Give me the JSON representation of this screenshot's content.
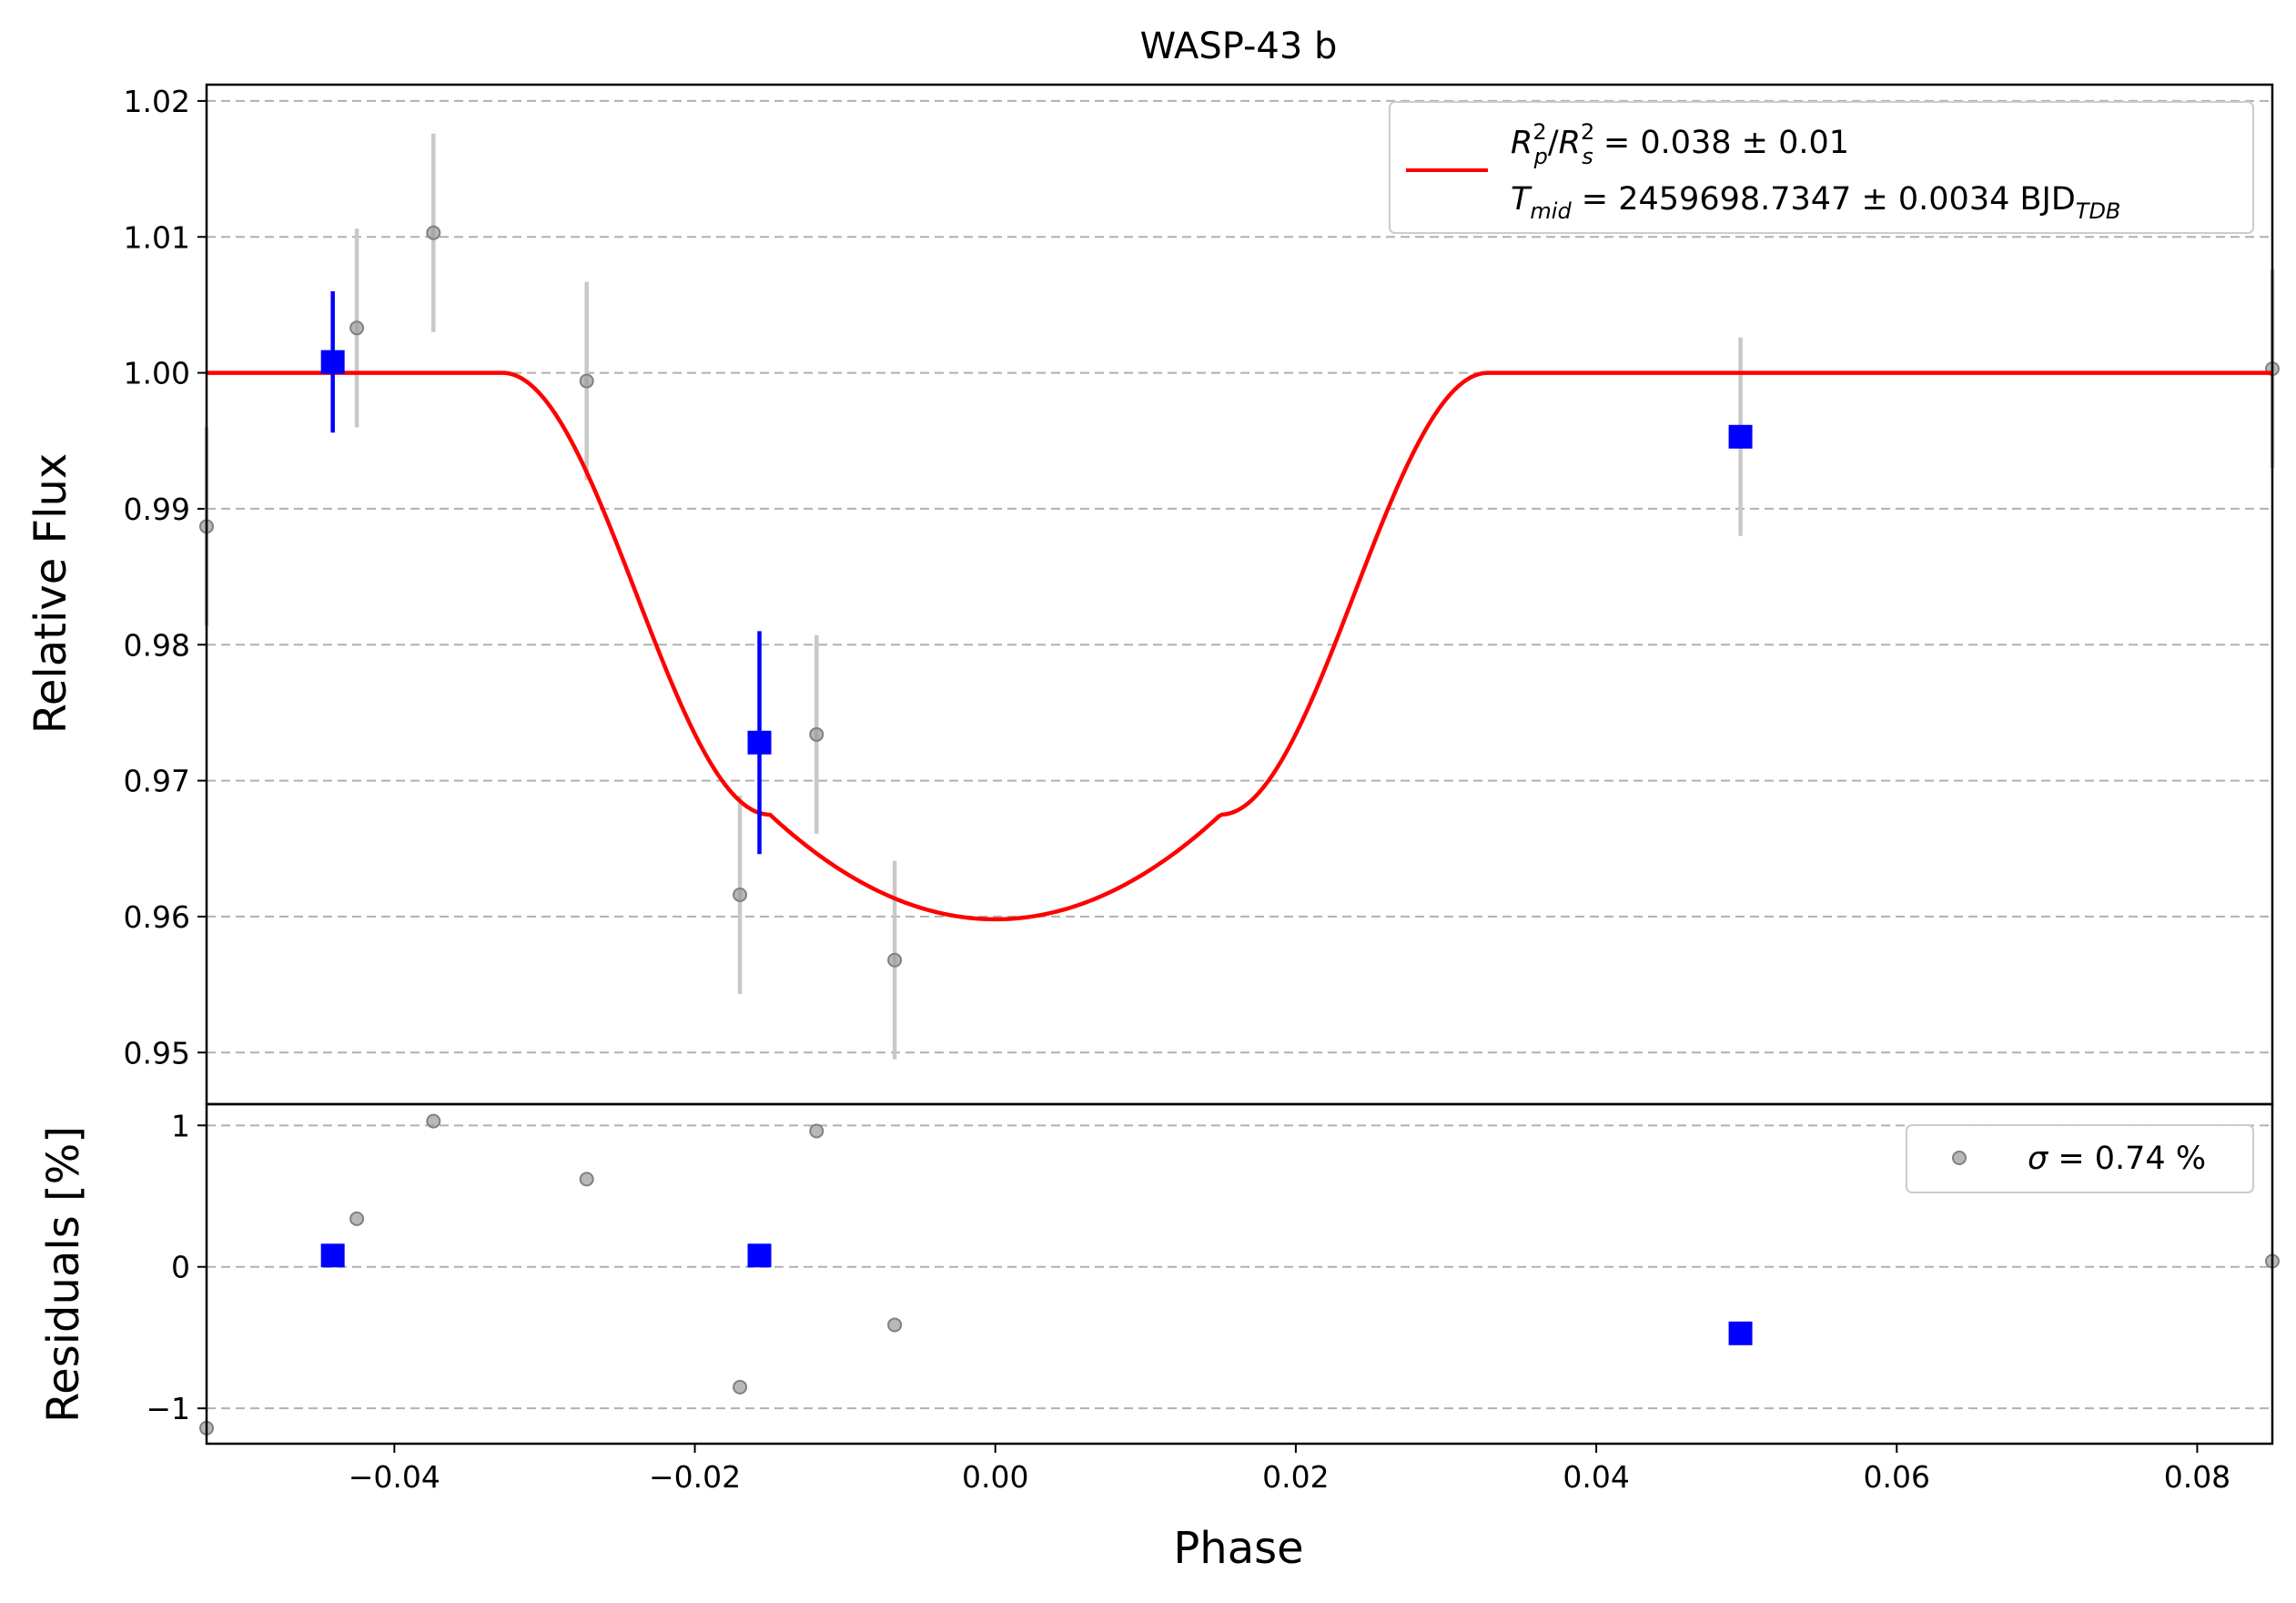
{
  "chart_data": [
    {
      "type": "scatter",
      "panel": "main",
      "title": "WASP-43 b",
      "xlabel": "",
      "ylabel": "Relative Flux",
      "xlim": [
        -0.0525,
        0.085
      ],
      "ylim": [
        0.9462,
        1.0212
      ],
      "yticks": [
        0.95,
        0.96,
        0.97,
        0.98,
        0.99,
        1.0,
        1.01,
        1.02
      ],
      "ytick_labels": [
        "0.95",
        "0.96",
        "0.97",
        "0.98",
        "0.99",
        "1.00",
        "1.01",
        "1.02"
      ],
      "grid": "horizontal dashed",
      "legend_position": "top-right",
      "series": [
        {
          "kind": "points_with_error",
          "color": "#808080",
          "points": [
            {
              "x": -0.0525,
              "y": 0.9887,
              "err": 0.0073
            },
            {
              "x": -0.0425,
              "y": 1.0033,
              "err": 0.0073
            },
            {
              "x": -0.0374,
              "y": 1.0103,
              "err": 0.0073
            },
            {
              "x": -0.0272,
              "y": 0.9994,
              "err": 0.0073
            },
            {
              "x": -0.017,
              "y": 0.9616,
              "err": 0.0073
            },
            {
              "x": -0.0119,
              "y": 0.9734,
              "err": 0.0073
            },
            {
              "x": -0.0067,
              "y": 0.9568,
              "err": 0.0073
            },
            {
              "x": 0.0496,
              "y": 0.9953,
              "err": 0.0073
            },
            {
              "x": 0.085,
              "y": 1.0003,
              "err": 0.0073
            }
          ]
        },
        {
          "kind": "binned_points",
          "color": "#0000ff",
          "points": [
            {
              "x": -0.0441,
              "y": 1.0008,
              "err": 0.0052
            },
            {
              "x": -0.0157,
              "y": 0.9728,
              "err": 0.0082
            },
            {
              "x": 0.0496,
              "y": 0.9953,
              "err": 0.0
            }
          ]
        },
        {
          "kind": "model_curve",
          "name": "R_p^2/R_s^2 = 0.038 ± 0.01 / T_mid = 2459698.7347 ± 0.0034 BJD_TDB",
          "color": "#ff0000",
          "depth": 0.038,
          "center": 0.0,
          "t1": 0.0328,
          "t2": 0.015,
          "min_y": 0.9598
        }
      ]
    },
    {
      "type": "scatter",
      "panel": "residuals",
      "xlabel": "Phase",
      "ylabel": "Residuals [%]",
      "xlim": [
        -0.0525,
        0.085
      ],
      "ylim": [
        -1.25,
        1.15
      ],
      "xticks": [
        -0.04,
        -0.02,
        0.0,
        0.02,
        0.04,
        0.06,
        0.08
      ],
      "xtick_labels": [
        "−0.04",
        "−0.02",
        "0.00",
        "0.02",
        "0.04",
        "0.06",
        "0.08"
      ],
      "yticks": [
        -1,
        0,
        1
      ],
      "ytick_labels": [
        "−1",
        "0",
        "1"
      ],
      "grid": "horizontal dashed",
      "legend_position": "top-right",
      "series": [
        {
          "kind": "points",
          "color": "#808080",
          "points": [
            {
              "x": -0.0525,
              "y": -1.14
            },
            {
              "x": -0.0425,
              "y": 0.34
            },
            {
              "x": -0.0374,
              "y": 1.03
            },
            {
              "x": -0.0272,
              "y": 0.62
            },
            {
              "x": -0.017,
              "y": -0.85
            },
            {
              "x": -0.0119,
              "y": 0.96
            },
            {
              "x": -0.0067,
              "y": -0.41
            },
            {
              "x": 0.085,
              "y": 0.04
            }
          ]
        },
        {
          "kind": "binned_points",
          "color": "#0000ff",
          "points": [
            {
              "x": -0.0441,
              "y": 0.08
            },
            {
              "x": -0.0157,
              "y": 0.08
            },
            {
              "x": 0.0496,
              "y": -0.47
            }
          ]
        }
      ]
    }
  ],
  "legend_main": {
    "line1": {
      "r": "R",
      "p": "p",
      "sup1": "2",
      "slash": "/",
      "s": "s",
      "sup2": "2",
      "value": " = 0.038 ± 0.01"
    },
    "line2": {
      "t": "T",
      "mid": "mid",
      "value": " = 2459698.7347 ± 0.0034 BJD",
      "tdb": "TDB"
    }
  },
  "legend_residuals": {
    "sigma": "σ",
    "value": " = 0.74 %"
  }
}
